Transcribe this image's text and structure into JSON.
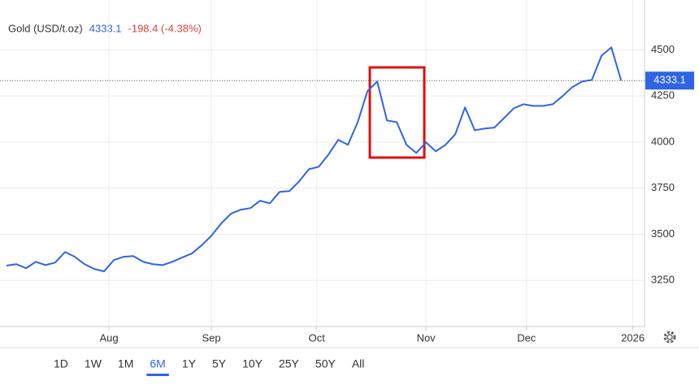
{
  "chart_data": {
    "type": "line",
    "title": "Gold (USD/t.oz)",
    "last_price": "4333.1",
    "change": "-198.4 (-4.38%)",
    "series": [
      {
        "name": "Gold",
        "color": "#2f64e6",
        "values": [
          3330,
          3338,
          3316,
          3351,
          3333,
          3347,
          3404,
          3378,
          3338,
          3312,
          3299,
          3360,
          3378,
          3382,
          3351,
          3338,
          3333,
          3351,
          3374,
          3396,
          3440,
          3492,
          3558,
          3611,
          3633,
          3642,
          3682,
          3668,
          3730,
          3734,
          3787,
          3853,
          3866,
          3932,
          4012,
          3985,
          4108,
          4276,
          4328,
          4117,
          4108,
          3985,
          3941,
          3998,
          3950,
          3985,
          4042,
          4188,
          4064,
          4073,
          4078,
          4130,
          4183,
          4205,
          4196,
          4196,
          4205,
          4249,
          4298,
          4328,
          4337,
          4469,
          4513,
          4333.1
        ]
      }
    ],
    "xlim": [
      0,
      65.4
    ],
    "xticks": [
      {
        "value": 10.5,
        "label": "Aug"
      },
      {
        "value": 21,
        "label": "Sep"
      },
      {
        "value": 31.8,
        "label": "Oct"
      },
      {
        "value": 43,
        "label": "Nov"
      },
      {
        "value": 53.3,
        "label": "Dec"
      },
      {
        "value": 64.2,
        "label": "2026"
      }
    ],
    "ylim": [
      3000,
      4770
    ],
    "yticks": [
      3250,
      3500,
      3750,
      4000,
      4250,
      4500
    ],
    "grid": true,
    "ranges": [
      "1D",
      "1W",
      "1M",
      "6M",
      "1Y",
      "5Y",
      "10Y",
      "25Y",
      "50Y",
      "All"
    ],
    "selected_range": "6M"
  }
}
